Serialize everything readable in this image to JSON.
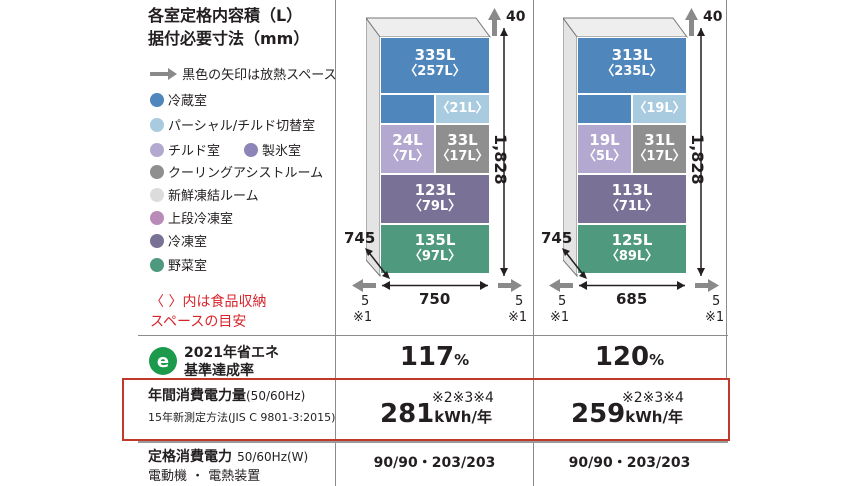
{
  "header": {
    "title_line1": "各室定格内容積（L）",
    "title_line2": "据付必要寸法（mm）",
    "arrow_note": "黒色の矢印は放熱スペース"
  },
  "legend": [
    {
      "label": "冷蔵室",
      "color": "#4f86bb"
    },
    {
      "label": "パーシャル/チルド切替室",
      "color": "#a9cbe0"
    },
    {
      "label": "チルド室",
      "color": "#b3a9d0"
    },
    {
      "label": "製氷室",
      "color": "#8d85b8"
    },
    {
      "label": "クーリングアシストルーム",
      "color": "#8f8f8f"
    },
    {
      "label": "新鮮凍結ルーム",
      "color": "#dcdcdc"
    },
    {
      "label": "上段冷凍室",
      "color": "#b98bb8"
    },
    {
      "label": "冷凍室",
      "color": "#7a7196"
    },
    {
      "label": "野菜室",
      "color": "#4f9a7e"
    }
  ],
  "note_red": {
    "line1": "〈 〉内は食品収納",
    "line2": "スペースの目安"
  },
  "models": [
    {
      "fridge_main": "335L",
      "fridge_main_sub": "〈257L〉",
      "partial": "〈21L〉",
      "chilled_left": "24L",
      "chilled_left_sub": "〈7L〉",
      "chilled_right": "33L",
      "chilled_right_sub": "〈17L〉",
      "freezer": "123L",
      "freezer_sub": "〈79L〉",
      "veg": "135L",
      "veg_sub": "〈97L〉",
      "top_clearance": "40",
      "height": "1,828",
      "depth": "745",
      "width": "750",
      "side_left": "5",
      "side_right": "5",
      "note_left": "※1",
      "note_right": "※1",
      "energy_rate": "117",
      "energy_rate_unit": "%",
      "annual_power": "281",
      "annual_power_unit": "kWh/年",
      "annual_power_notes": "※2※3※4",
      "rated_power": "90/90・203/203"
    },
    {
      "fridge_main": "313L",
      "fridge_main_sub": "〈235L〉",
      "partial": "〈19L〉",
      "chilled_left": "19L",
      "chilled_left_sub": "〈5L〉",
      "chilled_right": "31L",
      "chilled_right_sub": "〈17L〉",
      "freezer": "113L",
      "freezer_sub": "〈71L〉",
      "veg": "125L",
      "veg_sub": "〈89L〉",
      "top_clearance": "40",
      "height": "1,828",
      "depth": "745",
      "width": "685",
      "side_left": "5",
      "side_right": "5",
      "note_left": "※1",
      "note_right": "※1",
      "energy_rate": "120",
      "energy_rate_unit": "%",
      "annual_power": "259",
      "annual_power_unit": "kWh/年",
      "annual_power_notes": "※2※3※4",
      "rated_power": "90/90・203/203"
    }
  ],
  "rows": {
    "energy_label_line1": "2021年省エネ",
    "energy_label_line2": "基準達成率",
    "annual_label_main": "年間消費電力量",
    "annual_label_hz": "(50/60Hz)",
    "annual_label_method": "15年新測定方法(JIS C 9801-3:2015)",
    "rated_label_main": "定格消費電力",
    "rated_label_hz": "50/60Hz(W)",
    "rated_label_sub": "電動機 ・ 電熱装置"
  },
  "colors": {
    "highlight_border": "#c0392b",
    "energy_icon": "#1a9a4a"
  }
}
